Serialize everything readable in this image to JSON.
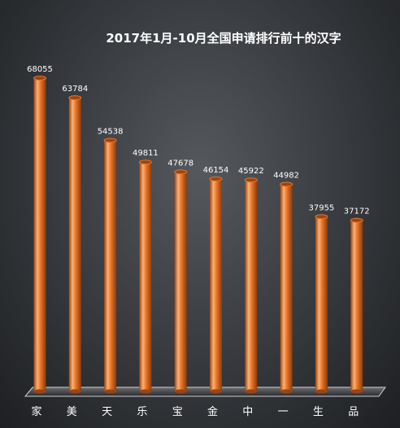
{
  "chart_data": {
    "type": "bar",
    "title": "2017年1月-10月全国申请排行前十的汉字",
    "categories": [
      "家",
      "美",
      "天",
      "乐",
      "宝",
      "金",
      "中",
      "一",
      "生",
      "品"
    ],
    "values": [
      68055,
      63784,
      54538,
      49811,
      47678,
      46154,
      45922,
      44982,
      37955,
      37172
    ],
    "value_labels": [
      "68055",
      "63784",
      "54538",
      "49811",
      "47678",
      "46154",
      "45922",
      "44982",
      "37955",
      "37172"
    ],
    "xlabel": "",
    "ylabel": "",
    "ylim": [
      0,
      70000
    ],
    "grid": false,
    "legend": "none",
    "colors": {
      "bar": "#e8762a",
      "bar_dark": "#9c4512",
      "bar_light": "#ffb070",
      "floor": "#cfd0d2",
      "text": "#ffffff"
    }
  }
}
